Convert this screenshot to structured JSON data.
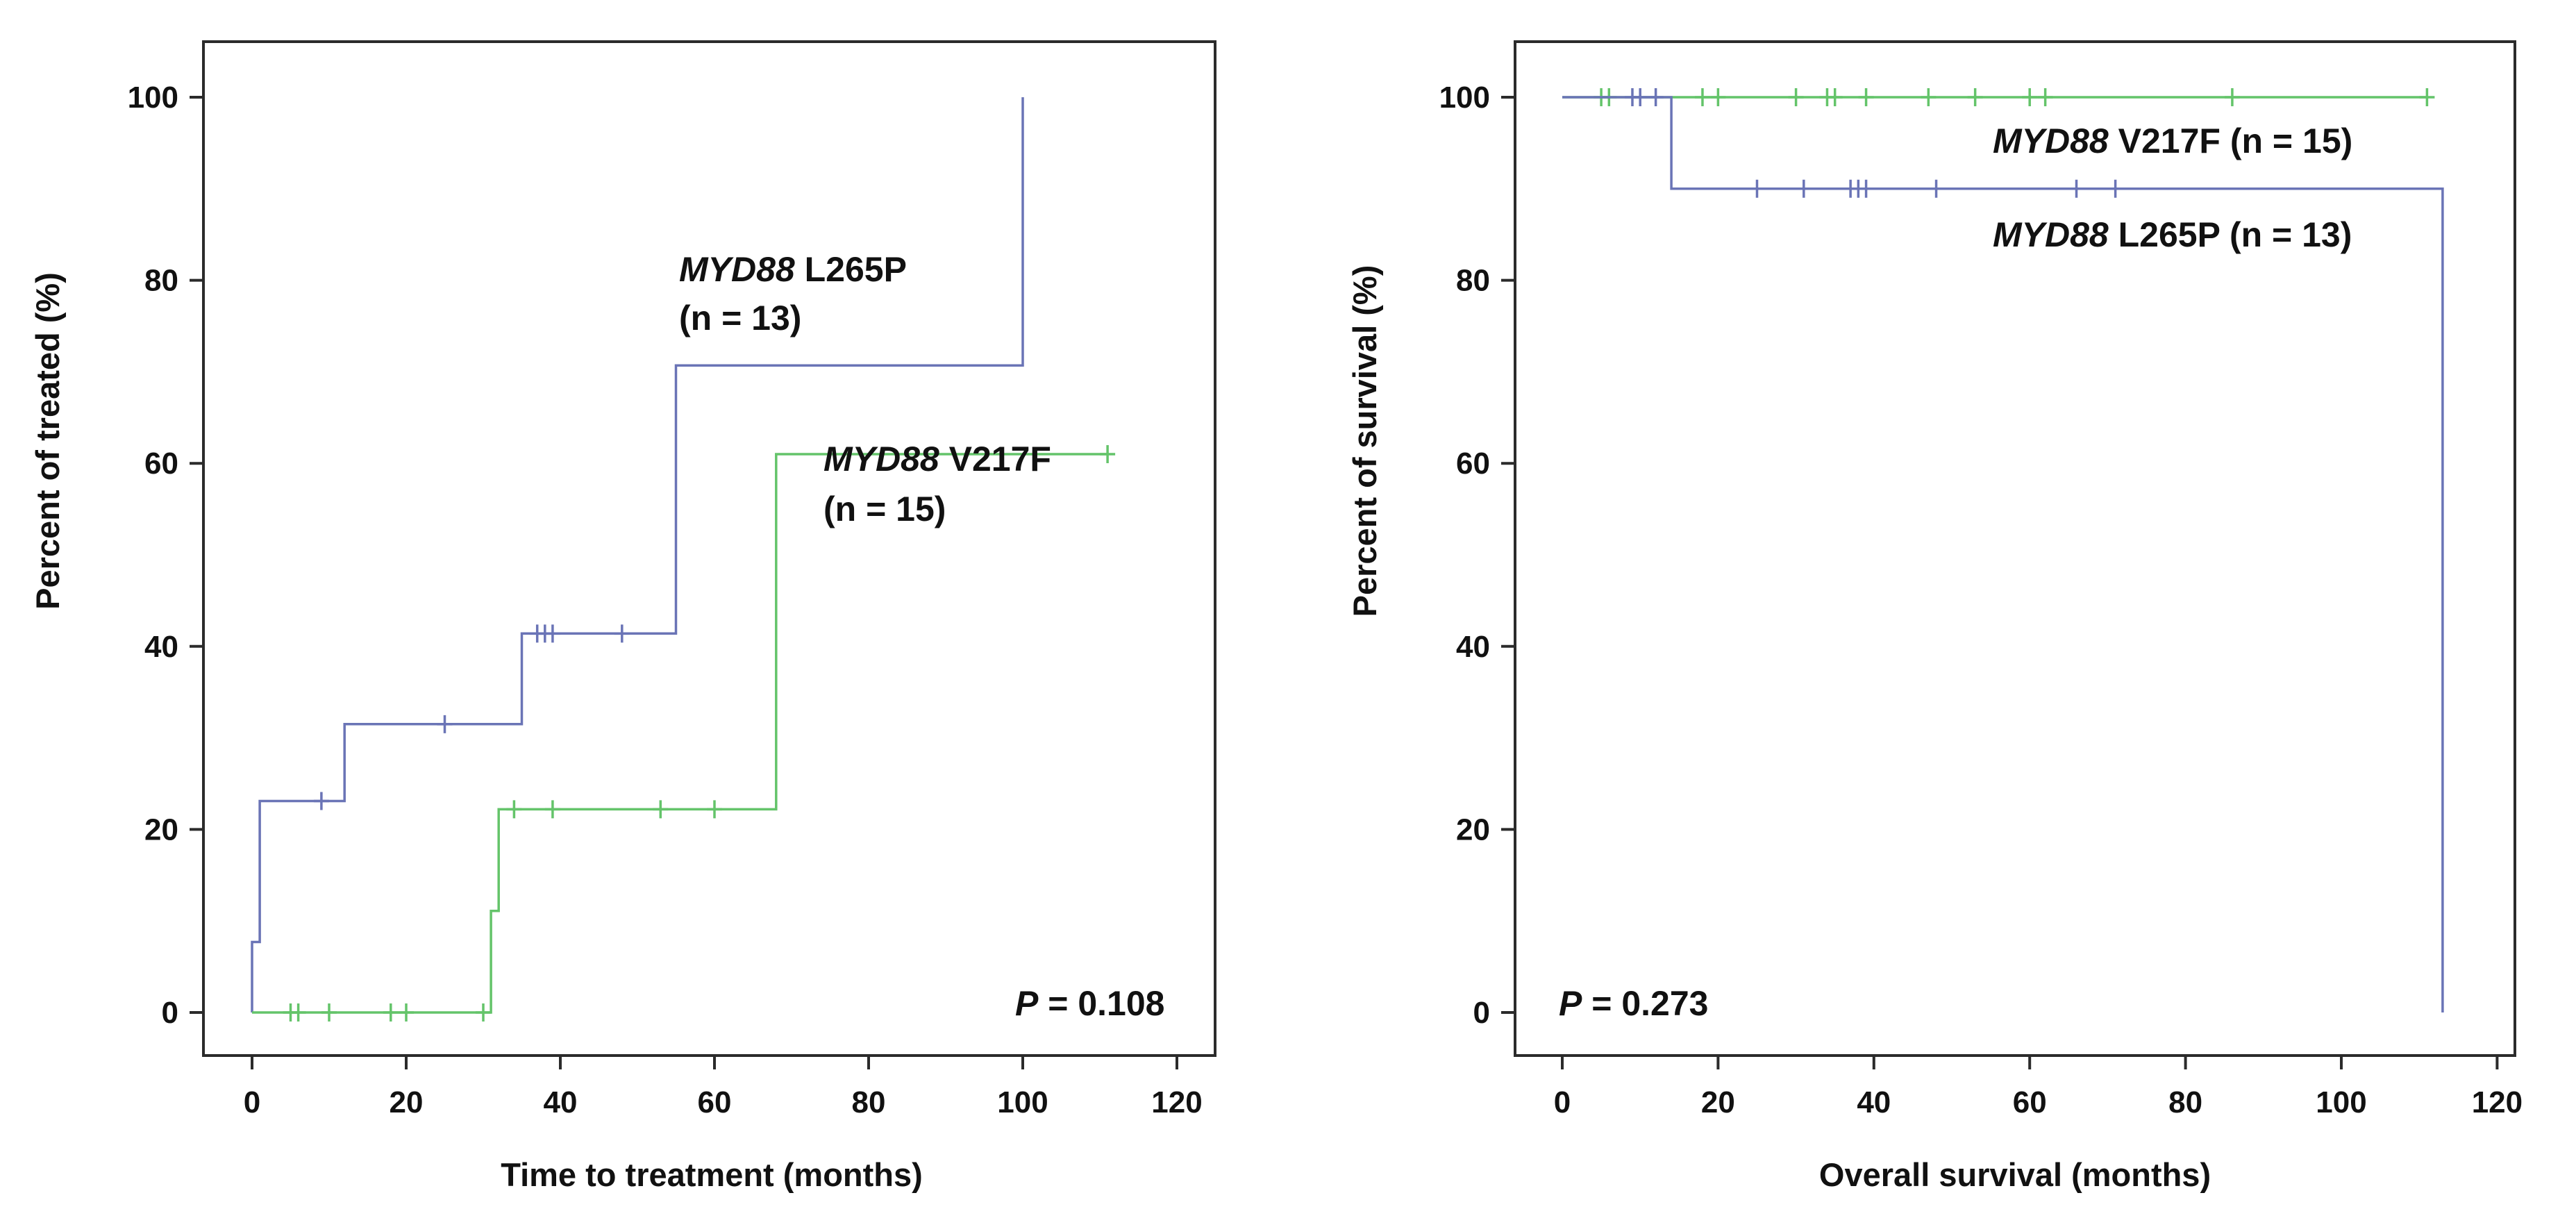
{
  "colors": {
    "l265p": "#6a74b6",
    "v217f": "#64c46a",
    "axis": "#2b2b2b"
  },
  "chart_data": [
    {
      "type": "line",
      "subtype": "kaplan-meier",
      "xlabel": "Time to treatment (months)",
      "ylabel": "Percent of treated (%)",
      "xlim": [
        0,
        120
      ],
      "ylim": [
        0,
        100
      ],
      "x_ticks": [
        "0",
        "20",
        "40",
        "60",
        "80",
        "100",
        "120"
      ],
      "y_ticks": [
        "0",
        "20",
        "40",
        "60",
        "80",
        "100"
      ],
      "p_value": {
        "label": "P",
        "value": "= 0.108"
      },
      "series": [
        {
          "name": "MYD88 L265P",
          "gene": "MYD88",
          "variant": "L265P",
          "n_label": "(n = 13)",
          "color_key": "l265p",
          "steps": [
            [
              0,
              0
            ],
            [
              0,
              7.7
            ],
            [
              1,
              7.7
            ],
            [
              1,
              23.1
            ],
            [
              12,
              23.1
            ],
            [
              12,
              31.5
            ],
            [
              35,
              31.5
            ],
            [
              35,
              41.4
            ],
            [
              55,
              41.4
            ],
            [
              55,
              70.7
            ],
            [
              100,
              70.7
            ],
            [
              100,
              100
            ]
          ],
          "censored": [
            [
              9,
              23.1
            ],
            [
              25,
              31.5
            ],
            [
              37,
              41.4
            ],
            [
              38,
              41.4
            ],
            [
              39,
              41.4
            ],
            [
              48,
              41.4
            ]
          ]
        },
        {
          "name": "MYD88 V217F",
          "gene": "MYD88",
          "variant": "V217F",
          "n_label": "(n = 15)",
          "color_key": "v217f",
          "steps": [
            [
              0,
              0
            ],
            [
              31,
              0
            ],
            [
              31,
              11.1
            ],
            [
              32,
              11.1
            ],
            [
              32,
              22.2
            ],
            [
              68,
              22.2
            ],
            [
              68,
              61
            ],
            [
              111,
              61
            ]
          ],
          "censored": [
            [
              5,
              0
            ],
            [
              6,
              0
            ],
            [
              10,
              0
            ],
            [
              18,
              0
            ],
            [
              20,
              0
            ],
            [
              30,
              0
            ],
            [
              34,
              22.2
            ],
            [
              39,
              22.2
            ],
            [
              53,
              22.2
            ],
            [
              60,
              22.2
            ],
            [
              111,
              61
            ]
          ]
        }
      ]
    },
    {
      "type": "line",
      "subtype": "kaplan-meier",
      "xlabel": "Overall survival (months)",
      "ylabel": "Percent of survival (%)",
      "xlim": [
        0,
        120
      ],
      "ylim": [
        0,
        100
      ],
      "x_ticks": [
        "0",
        "20",
        "40",
        "60",
        "80",
        "100",
        "120"
      ],
      "y_ticks": [
        "0",
        "20",
        "40",
        "60",
        "80",
        "100"
      ],
      "p_value": {
        "label": "P",
        "value": "= 0.273"
      },
      "series": [
        {
          "name": "MYD88 V217F (n = 15)",
          "gene": "MYD88",
          "variant": "V217F (n = 15)",
          "color_key": "v217f",
          "steps": [
            [
              0,
              100
            ],
            [
              111,
              100
            ]
          ],
          "censored": [
            [
              5,
              100
            ],
            [
              6,
              100
            ],
            [
              18,
              100
            ],
            [
              20,
              100
            ],
            [
              30,
              100
            ],
            [
              34,
              100
            ],
            [
              35,
              100
            ],
            [
              39,
              100
            ],
            [
              47,
              100
            ],
            [
              53,
              100
            ],
            [
              60,
              100
            ],
            [
              62,
              100
            ],
            [
              86,
              100
            ],
            [
              111,
              100
            ]
          ]
        },
        {
          "name": "MYD88 L265P (n = 13)",
          "gene": "MYD88",
          "variant": "L265P (n = 13)",
          "color_key": "l265p",
          "steps": [
            [
              0,
              100
            ],
            [
              14,
              100
            ],
            [
              14,
              90
            ],
            [
              113,
              90
            ],
            [
              113,
              0
            ]
          ],
          "censored": [
            [
              9,
              100
            ],
            [
              10,
              100
            ],
            [
              12,
              100
            ],
            [
              25,
              90
            ],
            [
              31,
              90
            ],
            [
              37,
              90
            ],
            [
              38,
              90
            ],
            [
              39,
              90
            ],
            [
              48,
              90
            ],
            [
              66,
              90
            ],
            [
              71,
              90
            ]
          ]
        }
      ]
    }
  ]
}
